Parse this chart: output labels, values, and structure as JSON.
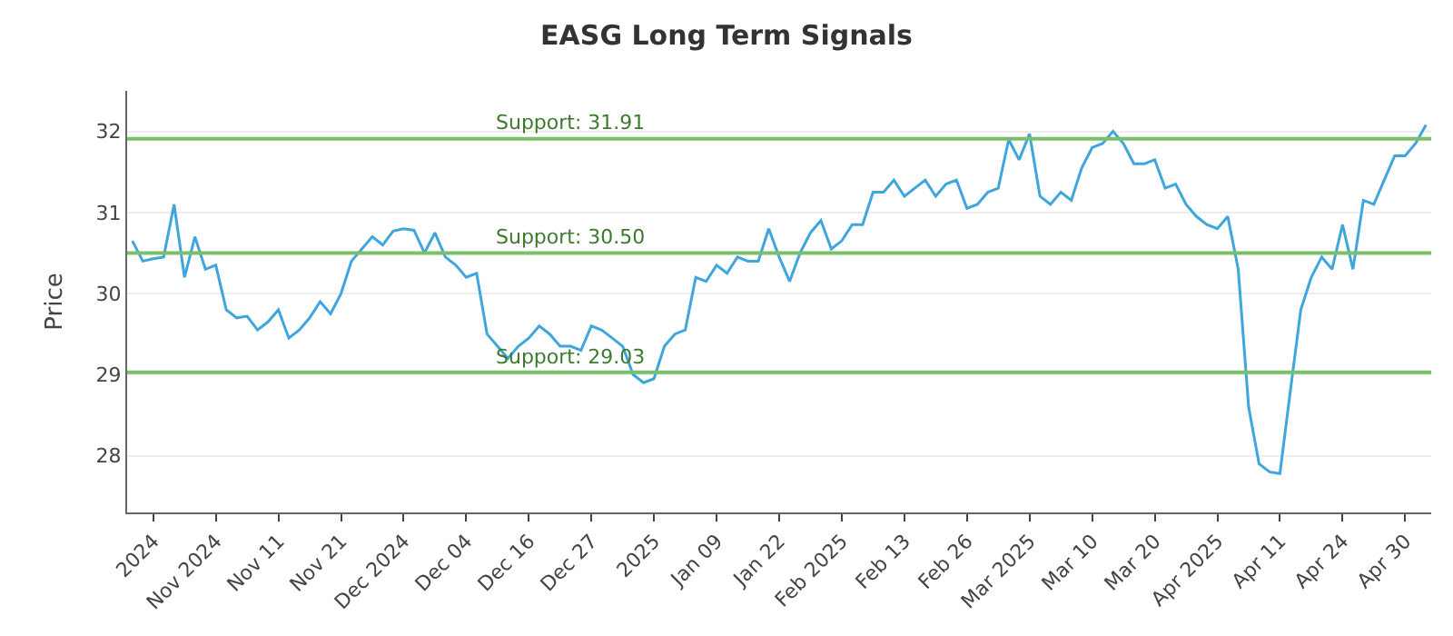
{
  "chart_data": {
    "type": "line",
    "title": "EASG Long Term Signals",
    "ylabel": "Price",
    "categories": [
      null,
      null,
      "2024",
      null,
      null,
      null,
      null,
      null,
      "Nov 2024",
      null,
      null,
      null,
      null,
      null,
      "Nov 11",
      null,
      null,
      null,
      null,
      null,
      "Nov 21",
      null,
      null,
      null,
      null,
      null,
      "Dec 2024",
      null,
      null,
      null,
      null,
      null,
      "Dec 04",
      null,
      null,
      null,
      null,
      null,
      "Dec 16",
      null,
      null,
      null,
      null,
      null,
      "Dec 27",
      null,
      null,
      null,
      null,
      null,
      "2025",
      null,
      null,
      null,
      null,
      null,
      "Jan 09",
      null,
      null,
      null,
      null,
      null,
      "Jan 22",
      null,
      null,
      null,
      null,
      null,
      "Feb 2025",
      null,
      null,
      null,
      null,
      null,
      "Feb 13",
      null,
      null,
      null,
      null,
      null,
      "Feb 26",
      null,
      null,
      null,
      null,
      null,
      "Mar 2025",
      null,
      null,
      null,
      null,
      null,
      "Mar 10",
      null,
      null,
      null,
      null,
      null,
      "Mar 20",
      null,
      null,
      null,
      null,
      null,
      "Apr 2025",
      null,
      null,
      null,
      null,
      null,
      "Apr 11",
      null,
      null,
      null,
      null,
      null,
      "Apr 24",
      null,
      null,
      null,
      null,
      null,
      "Apr 30",
      null,
      null
    ],
    "series": [
      {
        "color": "#3ea6dc",
        "values": [
          30.65,
          30.4,
          30.43,
          30.45,
          31.1,
          30.2,
          30.7,
          30.3,
          30.35,
          29.8,
          29.7,
          29.72,
          29.55,
          29.65,
          29.8,
          29.45,
          29.55,
          29.7,
          29.9,
          29.75,
          30.0,
          30.4,
          30.55,
          30.7,
          30.6,
          30.77,
          30.8,
          30.78,
          30.5,
          30.75,
          30.45,
          30.35,
          30.2,
          30.25,
          29.5,
          29.35,
          29.2,
          29.35,
          29.45,
          29.6,
          29.5,
          29.35,
          29.35,
          29.3,
          29.6,
          29.55,
          29.45,
          29.35,
          29.0,
          28.9,
          28.95,
          29.35,
          29.5,
          29.55,
          30.2,
          30.15,
          30.35,
          30.25,
          30.45,
          30.4,
          30.4,
          30.8,
          30.45,
          30.15,
          30.5,
          30.75,
          30.9,
          30.55,
          30.65,
          30.85,
          30.85,
          31.25,
          31.25,
          31.4,
          31.2,
          31.3,
          31.4,
          31.2,
          31.35,
          31.4,
          31.05,
          31.1,
          31.25,
          31.3,
          31.9,
          31.65,
          31.97,
          31.2,
          31.1,
          31.25,
          31.15,
          31.55,
          31.8,
          31.85,
          32.0,
          31.85,
          31.6,
          31.6,
          31.65,
          31.3,
          31.35,
          31.1,
          30.95,
          30.85,
          30.8,
          30.95,
          30.3,
          28.6,
          27.9,
          27.8,
          27.78,
          28.8,
          29.8,
          30.2,
          30.45,
          30.3,
          30.85,
          30.3,
          31.15,
          31.1,
          31.4,
          31.7,
          31.7,
          31.85,
          32.08
        ]
      }
    ],
    "ylim": [
      27.3,
      32.5
    ],
    "yticks": [
      28,
      29,
      30,
      31,
      32
    ],
    "grid": "y",
    "marker": "none",
    "line_style": "solid",
    "ref_lines": [
      {
        "axis": "y",
        "value": 31.91,
        "label": "Support: 31.91",
        "color": "#7bbf6a"
      },
      {
        "axis": "y",
        "value": 30.5,
        "label": "Support: 30.50",
        "color": "#7bbf6a"
      },
      {
        "axis": "y",
        "value": 29.03,
        "label": "Support: 29.03",
        "color": "#7bbf6a"
      }
    ]
  }
}
